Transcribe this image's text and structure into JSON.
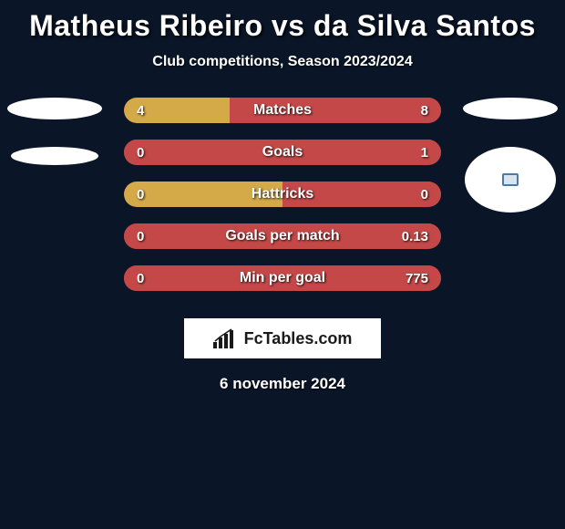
{
  "header": {
    "title": "Matheus Ribeiro vs da Silva Santos",
    "subtitle": "Club competitions, Season 2023/2024"
  },
  "colors": {
    "background": "#0a1628",
    "left_player": "#d4a948",
    "right_player": "#c44848",
    "text": "#ffffff"
  },
  "stats": [
    {
      "label": "Matches",
      "left_value": "4",
      "right_value": "8",
      "left_pct": 33.3,
      "right_pct": 66.7,
      "left_color": "#d4a948",
      "right_color": "#c44848"
    },
    {
      "label": "Goals",
      "left_value": "0",
      "right_value": "1",
      "left_pct": 0,
      "right_pct": 100,
      "left_color": "#d4a948",
      "right_color": "#c44848"
    },
    {
      "label": "Hattricks",
      "left_value": "0",
      "right_value": "0",
      "left_pct": 50,
      "right_pct": 50,
      "left_color": "#d4a948",
      "right_color": "#c44848"
    },
    {
      "label": "Goals per match",
      "left_value": "0",
      "right_value": "0.13",
      "left_pct": 0,
      "right_pct": 100,
      "left_color": "#d4a948",
      "right_color": "#c44848"
    },
    {
      "label": "Min per goal",
      "left_value": "0",
      "right_value": "775",
      "left_pct": 0,
      "right_pct": 100,
      "left_color": "#d4a948",
      "right_color": "#c44848"
    }
  ],
  "branding": {
    "logo_text": "FcTables.com"
  },
  "footer": {
    "date": "6 november 2024"
  }
}
